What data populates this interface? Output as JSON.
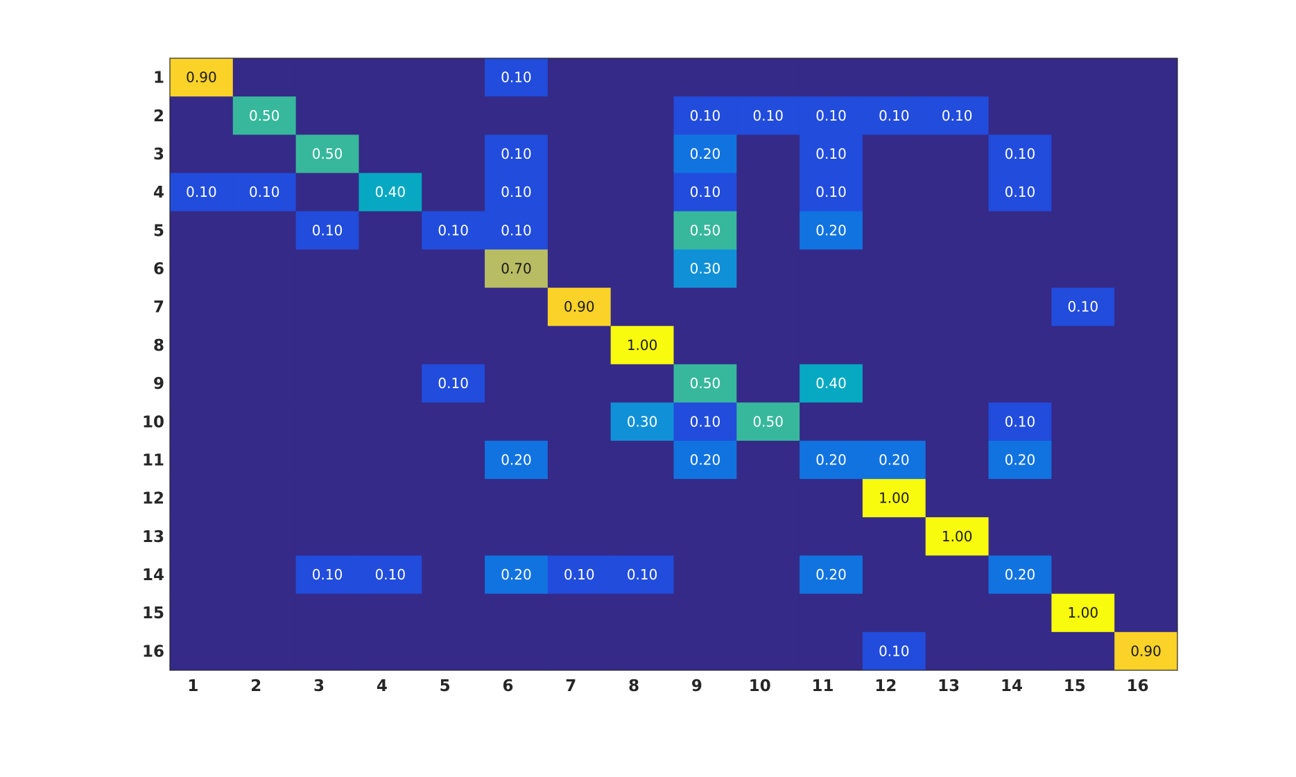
{
  "chart_data": {
    "type": "heatmap",
    "title": "",
    "xlabel": "",
    "ylabel": "",
    "x_categories": [
      "1",
      "2",
      "3",
      "4",
      "5",
      "6",
      "7",
      "8",
      "9",
      "10",
      "11",
      "12",
      "13",
      "14",
      "15",
      "16"
    ],
    "y_categories": [
      "1",
      "2",
      "3",
      "4",
      "5",
      "6",
      "7",
      "8",
      "9",
      "10",
      "11",
      "12",
      "13",
      "14",
      "15",
      "16"
    ],
    "values": [
      [
        0.9,
        0,
        0,
        0,
        0,
        0.1,
        0,
        0,
        0,
        0,
        0,
        0,
        0,
        0,
        0,
        0
      ],
      [
        0,
        0.5,
        0,
        0,
        0,
        0,
        0,
        0,
        0.1,
        0.1,
        0.1,
        0.1,
        0.1,
        0,
        0,
        0
      ],
      [
        0,
        0,
        0.5,
        0,
        0,
        0.1,
        0,
        0,
        0.2,
        0,
        0.1,
        0,
        0,
        0.1,
        0,
        0
      ],
      [
        0.1,
        0.1,
        0,
        0.4,
        0,
        0.1,
        0,
        0,
        0.1,
        0,
        0.1,
        0,
        0,
        0.1,
        0,
        0
      ],
      [
        0,
        0,
        0.1,
        0,
        0.1,
        0.1,
        0,
        0,
        0.5,
        0,
        0.2,
        0,
        0,
        0,
        0,
        0
      ],
      [
        0,
        0,
        0,
        0,
        0,
        0.7,
        0,
        0,
        0.3,
        0,
        0,
        0,
        0,
        0,
        0,
        0
      ],
      [
        0,
        0,
        0,
        0,
        0,
        0,
        0.9,
        0,
        0,
        0,
        0,
        0,
        0,
        0,
        0.1,
        0
      ],
      [
        0,
        0,
        0,
        0,
        0,
        0,
        0,
        1.0,
        0,
        0,
        0,
        0,
        0,
        0,
        0,
        0
      ],
      [
        0,
        0,
        0,
        0,
        0.1,
        0,
        0,
        0,
        0.5,
        0,
        0.4,
        0,
        0,
        0,
        0,
        0
      ],
      [
        0,
        0,
        0,
        0,
        0,
        0,
        0,
        0.3,
        0.1,
        0.5,
        0,
        0,
        0,
        0.1,
        0,
        0
      ],
      [
        0,
        0,
        0,
        0,
        0,
        0.2,
        0,
        0,
        0.2,
        0,
        0.2,
        0.2,
        0,
        0.2,
        0,
        0
      ],
      [
        0,
        0,
        0,
        0,
        0,
        0,
        0,
        0,
        0,
        0,
        0,
        1.0,
        0,
        0,
        0,
        0
      ],
      [
        0,
        0,
        0,
        0,
        0,
        0,
        0,
        0,
        0,
        0,
        0,
        0,
        1.0,
        0,
        0,
        0
      ],
      [
        0,
        0,
        0.1,
        0.1,
        0,
        0.2,
        0.1,
        0.1,
        0,
        0,
        0.2,
        0,
        0,
        0.2,
        0,
        0
      ],
      [
        0,
        0,
        0,
        0,
        0,
        0,
        0,
        0,
        0,
        0,
        0,
        0,
        0,
        0,
        1.0,
        0
      ],
      [
        0,
        0,
        0,
        0,
        0,
        0,
        0,
        0,
        0,
        0,
        0,
        0.1,
        0,
        0,
        0,
        0.9
      ]
    ],
    "value_format": "0.00",
    "colormap": "parula",
    "zero_labels_shown": false,
    "range": [
      0,
      1
    ]
  }
}
